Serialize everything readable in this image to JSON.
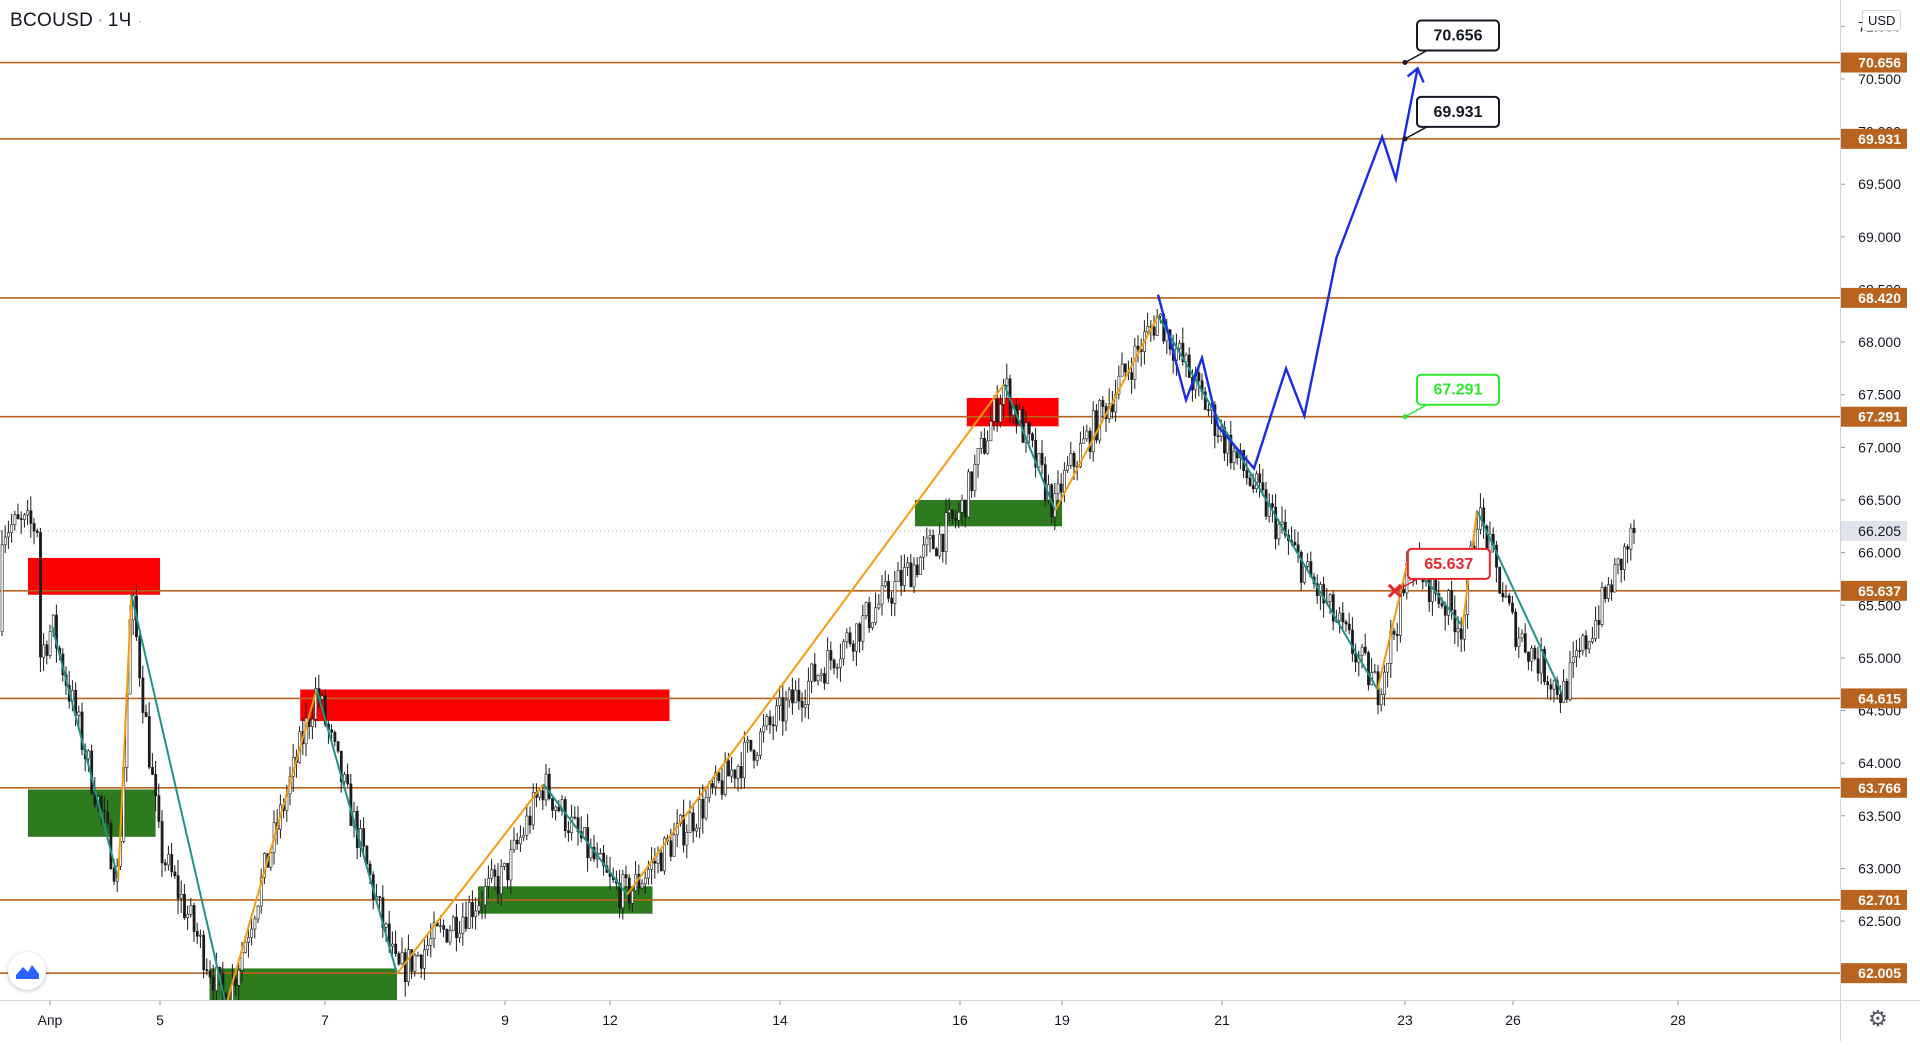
{
  "header": {
    "symbol": "BCOUSD",
    "interval": "1Ч",
    "currency": "USD"
  },
  "colors": {
    "level_line": "#b8631f",
    "level_tag": "#b8631f",
    "bull_candle": "#26a69a",
    "bear_candle": "#ef5350",
    "candle": "#1c1c1c",
    "zigzag_up": "#f59b0f",
    "zigzag_down": "#1e9486",
    "forecast": "#1a2be6",
    "supply_zone": "#ff0000",
    "demand_zone": "#2d7a1f",
    "target_green": "#2ee82e",
    "target_red": "#e8252b"
  },
  "chart_data": {
    "type": "candlestick",
    "ylim": [
      61.75,
      71.25
    ],
    "price_ticks": [
      "71.000",
      "70.500",
      "70.000",
      "69.500",
      "69.000",
      "68.500",
      "68.000",
      "67.500",
      "67.000",
      "66.500",
      "66.000",
      "65.500",
      "65.000",
      "64.500",
      "64.000",
      "63.500",
      "63.000",
      "62.500",
      "62.000"
    ],
    "time_ticks": [
      {
        "label": "Апр",
        "day": 0
      },
      {
        "label": "5",
        "day": 5
      },
      {
        "label": "7",
        "day": 7
      },
      {
        "label": "9",
        "day": 9
      },
      {
        "label": "12",
        "day": 12
      },
      {
        "label": "14",
        "day": 14
      },
      {
        "label": "16",
        "day": 16
      },
      {
        "label": "19",
        "day": 19
      },
      {
        "label": "21",
        "day": 21
      },
      {
        "label": "23",
        "day": 23
      },
      {
        "label": "26",
        "day": 26
      },
      {
        "label": "28",
        "day": 28
      }
    ],
    "levels": [
      {
        "value": 70.656,
        "label": "70.656"
      },
      {
        "value": 69.931,
        "label": "69.931"
      },
      {
        "value": 68.42,
        "label": "68.420"
      },
      {
        "value": 67.291,
        "label": "67.291"
      },
      {
        "value": 65.637,
        "label": "65.637"
      },
      {
        "value": 64.615,
        "label": "64.615"
      },
      {
        "value": 63.766,
        "label": "63.766"
      },
      {
        "value": 62.701,
        "label": "62.701"
      },
      {
        "value": 62.005,
        "label": "62.005"
      }
    ],
    "last_price": {
      "value": 66.205,
      "label": "66.205"
    },
    "zones": [
      {
        "kind": "supply",
        "x0": -1.0,
        "x1": 5.0,
        "y0": 65.6,
        "y1": 65.95
      },
      {
        "kind": "demand",
        "x0": -1.0,
        "x1": 4.8,
        "y0": 63.3,
        "y1": 63.75
      },
      {
        "kind": "supply",
        "x0": 6.7,
        "x1": 12.7,
        "y0": 64.4,
        "y1": 64.7
      },
      {
        "kind": "demand",
        "x0": 5.6,
        "x1": 7.8,
        "y0": 61.72,
        "y1": 62.05
      },
      {
        "kind": "demand",
        "x0": 8.7,
        "x1": 12.5,
        "y0": 62.57,
        "y1": 62.83
      },
      {
        "kind": "supply",
        "x0": 16.2,
        "x1": 18.9,
        "y0": 67.2,
        "y1": 67.47
      },
      {
        "kind": "demand",
        "x0": 15.5,
        "x1": 19.0,
        "y0": 66.25,
        "y1": 66.5
      }
    ],
    "zigzag": [
      {
        "day": 0.1,
        "price": 65.3
      },
      {
        "day": 3.1,
        "price": 62.9
      },
      {
        "day": 3.7,
        "price": 65.6
      },
      {
        "day": 5.8,
        "price": 61.7
      },
      {
        "day": 6.9,
        "price": 64.7
      },
      {
        "day": 7.8,
        "price": 62.0
      },
      {
        "day": 10.1,
        "price": 63.8
      },
      {
        "day": 12.2,
        "price": 62.75
      },
      {
        "day": 17.3,
        "price": 67.6
      },
      {
        "day": 18.8,
        "price": 66.4
      },
      {
        "day": 20.2,
        "price": 68.25
      },
      {
        "day": 22.7,
        "price": 64.7
      },
      {
        "day": 23.1,
        "price": 65.95
      },
      {
        "day": 24.6,
        "price": 65.3
      },
      {
        "day": 25.0,
        "price": 66.4
      },
      {
        "day": 26.6,
        "price": 64.65
      }
    ],
    "forecast": [
      {
        "day": 20.2,
        "price": 68.45
      },
      {
        "day": 20.55,
        "price": 67.45
      },
      {
        "day": 20.75,
        "price": 67.85
      },
      {
        "day": 20.95,
        "price": 67.2
      },
      {
        "day": 21.35,
        "price": 66.8
      },
      {
        "day": 21.7,
        "price": 67.75
      },
      {
        "day": 21.9,
        "price": 67.3
      },
      {
        "day": 22.25,
        "price": 68.8
      },
      {
        "day": 22.75,
        "price": 69.95
      },
      {
        "day": 22.9,
        "price": 69.55
      },
      {
        "day": 23.35,
        "price": 70.6
      }
    ],
    "targets": [
      {
        "label": "70.656",
        "value": 70.656,
        "day": 23.0,
        "style": "black"
      },
      {
        "label": "69.931",
        "value": 69.931,
        "day": 23.0,
        "style": "black"
      },
      {
        "label": "67.291",
        "value": 67.291,
        "day": 23.0,
        "style": "green"
      },
      {
        "label": "65.637",
        "value": 65.637,
        "day": 22.9,
        "style": "red"
      }
    ]
  }
}
